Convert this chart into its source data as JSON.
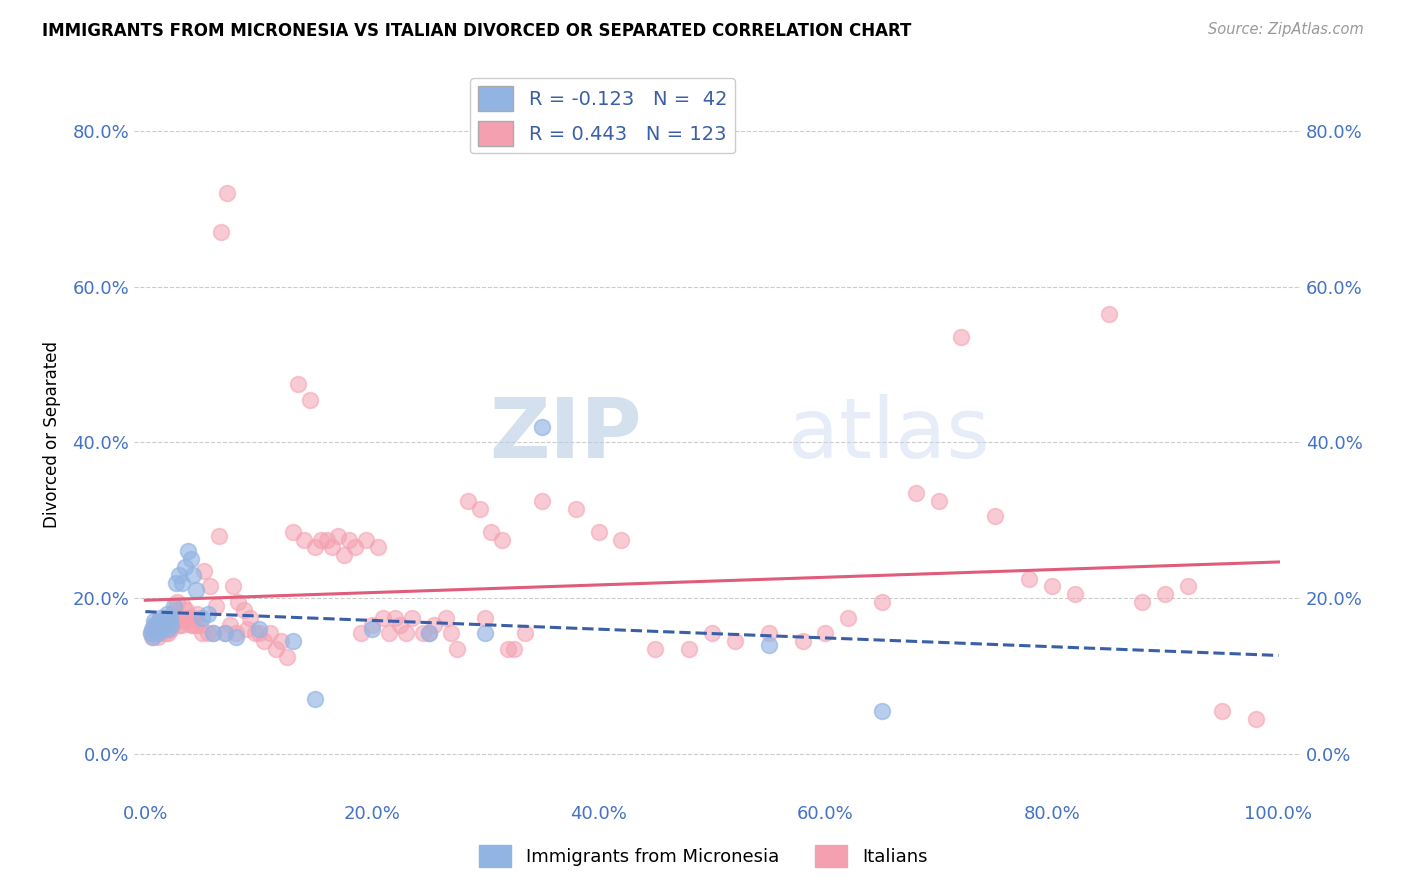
{
  "title": "IMMIGRANTS FROM MICRONESIA VS ITALIAN DIVORCED OR SEPARATED CORRELATION CHART",
  "source": "Source: ZipAtlas.com",
  "ylabel": "Divorced or Separated",
  "blue_R": "-0.123",
  "blue_N": "42",
  "pink_R": "0.443",
  "pink_N": "123",
  "blue_color": "#92b4e3",
  "pink_color": "#f4a0b0",
  "blue_line_color": "#3a5fa8",
  "pink_line_color": "#e05c7a",
  "watermark_zip": "ZIP",
  "watermark_atlas": "atlas",
  "background_color": "#ffffff",
  "grid_color": "#cccccc",
  "legend_label_blue": "Immigrants from Micronesia",
  "legend_label_pink": "Italians",
  "tick_color": "#4472c4",
  "blue_scatter_x": [
    0.005,
    0.006,
    0.007,
    0.008,
    0.009,
    0.01,
    0.011,
    0.012,
    0.013,
    0.014,
    0.015,
    0.016,
    0.017,
    0.018,
    0.019,
    0.02,
    0.021,
    0.022,
    0.023,
    0.025,
    0.027,
    0.03,
    0.032,
    0.035,
    0.038,
    0.04,
    0.042,
    0.045,
    0.05,
    0.055,
    0.06,
    0.07,
    0.08,
    0.1,
    0.13,
    0.15,
    0.2,
    0.25,
    0.3,
    0.35,
    0.55,
    0.65
  ],
  "blue_scatter_y": [
    0.155,
    0.16,
    0.15,
    0.17,
    0.165,
    0.16,
    0.155,
    0.17,
    0.175,
    0.165,
    0.16,
    0.17,
    0.165,
    0.175,
    0.18,
    0.16,
    0.17,
    0.175,
    0.165,
    0.19,
    0.22,
    0.23,
    0.22,
    0.24,
    0.26,
    0.25,
    0.23,
    0.21,
    0.175,
    0.18,
    0.155,
    0.155,
    0.15,
    0.16,
    0.145,
    0.07,
    0.16,
    0.155,
    0.155,
    0.42,
    0.14,
    0.055
  ],
  "pink_scatter_x": [
    0.005,
    0.006,
    0.007,
    0.008,
    0.009,
    0.01,
    0.011,
    0.012,
    0.013,
    0.014,
    0.015,
    0.016,
    0.017,
    0.018,
    0.019,
    0.02,
    0.021,
    0.022,
    0.023,
    0.025,
    0.027,
    0.03,
    0.032,
    0.035,
    0.038,
    0.04,
    0.042,
    0.045,
    0.05,
    0.055,
    0.06,
    0.065,
    0.07,
    0.075,
    0.08,
    0.09,
    0.1,
    0.11,
    0.12,
    0.13,
    0.14,
    0.15,
    0.16,
    0.17,
    0.18,
    0.19,
    0.2,
    0.21,
    0.22,
    0.23,
    0.25,
    0.27,
    0.3,
    0.32,
    0.35,
    0.38,
    0.4,
    0.42,
    0.45,
    0.48,
    0.5,
    0.52,
    0.55,
    0.58,
    0.6,
    0.62,
    0.65,
    0.68,
    0.7,
    0.72,
    0.75,
    0.78,
    0.8,
    0.82,
    0.85,
    0.88,
    0.9,
    0.92,
    0.95,
    0.98,
    0.024,
    0.026,
    0.028,
    0.033,
    0.036,
    0.039,
    0.043,
    0.046,
    0.048,
    0.052,
    0.057,
    0.062,
    0.067,
    0.072,
    0.077,
    0.082,
    0.087,
    0.092,
    0.097,
    0.105,
    0.115,
    0.125,
    0.135,
    0.145,
    0.155,
    0.165,
    0.175,
    0.185,
    0.195,
    0.205,
    0.215,
    0.225,
    0.235,
    0.245,
    0.255,
    0.265,
    0.275,
    0.285,
    0.295,
    0.305,
    0.315,
    0.325,
    0.335
  ],
  "pink_scatter_y": [
    0.155,
    0.15,
    0.16,
    0.165,
    0.16,
    0.155,
    0.15,
    0.165,
    0.16,
    0.155,
    0.16,
    0.165,
    0.155,
    0.17,
    0.175,
    0.155,
    0.165,
    0.17,
    0.16,
    0.175,
    0.17,
    0.165,
    0.165,
    0.17,
    0.175,
    0.165,
    0.165,
    0.165,
    0.155,
    0.155,
    0.155,
    0.28,
    0.155,
    0.165,
    0.155,
    0.16,
    0.155,
    0.155,
    0.145,
    0.285,
    0.275,
    0.265,
    0.275,
    0.28,
    0.275,
    0.155,
    0.165,
    0.175,
    0.175,
    0.155,
    0.155,
    0.155,
    0.175,
    0.135,
    0.325,
    0.315,
    0.285,
    0.275,
    0.135,
    0.135,
    0.155,
    0.145,
    0.155,
    0.145,
    0.155,
    0.175,
    0.195,
    0.335,
    0.325,
    0.535,
    0.305,
    0.225,
    0.215,
    0.205,
    0.565,
    0.195,
    0.205,
    0.215,
    0.055,
    0.045,
    0.175,
    0.185,
    0.195,
    0.19,
    0.185,
    0.175,
    0.175,
    0.18,
    0.165,
    0.235,
    0.215,
    0.19,
    0.67,
    0.72,
    0.215,
    0.195,
    0.185,
    0.175,
    0.155,
    0.145,
    0.135,
    0.125,
    0.475,
    0.455,
    0.275,
    0.265,
    0.255,
    0.265,
    0.275,
    0.265,
    0.155,
    0.165,
    0.175,
    0.155,
    0.165,
    0.175,
    0.135,
    0.325,
    0.315,
    0.285,
    0.275,
    0.135,
    0.155
  ]
}
